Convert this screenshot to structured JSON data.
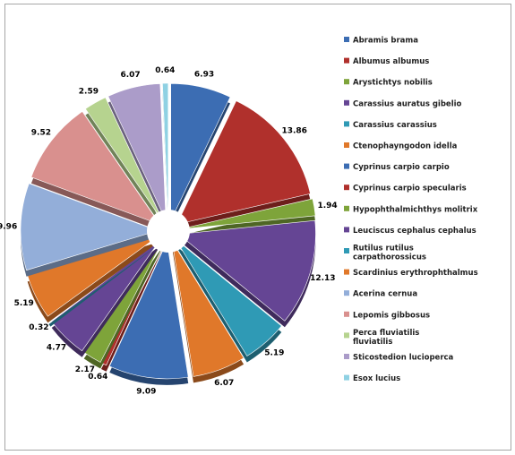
{
  "chart_data": {
    "type": "pie",
    "exploded": true,
    "style": "3d",
    "legend_position": "right",
    "categories": [
      "Abramis brama",
      "Albumus albumus",
      "Arystichtys nobilis",
      "Carassius auratus gibelio",
      "Carassius carassius",
      "Ctenophayngodon idella",
      "Cyprinus carpio carpio",
      "Cyprinus carpio specularis",
      "Hypophthalmichthys molitrix",
      "Leuciscus cephalus cephalus",
      "Rutilus rutilus carpathorossicus",
      "Scardinius erythrophthalmus",
      "Acerina cernua",
      "Lepomis gibbosus",
      "Perca fluviatilis fluviatilis",
      "Sticostedion lucioperca",
      "Esox lucius"
    ],
    "values": [
      6.93,
      13.86,
      1.94,
      12.13,
      5.19,
      6.07,
      9.09,
      0.64,
      2.17,
      4.77,
      0.32,
      5.19,
      9.96,
      9.52,
      2.59,
      6.07,
      0.64
    ],
    "labels": [
      "6.93",
      "13.86",
      "1.94",
      "12.13",
      "5.19",
      "6.07",
      "9.09",
      "0.64",
      "2.17",
      "4.77",
      "0.32",
      "5.19",
      "9.96",
      "9.52",
      "2.59",
      "6.07",
      "0.64"
    ],
    "colors": [
      "#3c6db3",
      "#b0302c",
      "#7ea43a",
      "#654594",
      "#2f9ab5",
      "#e0782a",
      "#3c6db3",
      "#b0302c",
      "#7ea43a",
      "#654594",
      "#2f9ab5",
      "#e0782a",
      "#93aed9",
      "#d9908e",
      "#b6d38f",
      "#ab9cc9",
      "#8fd1e3"
    ]
  }
}
